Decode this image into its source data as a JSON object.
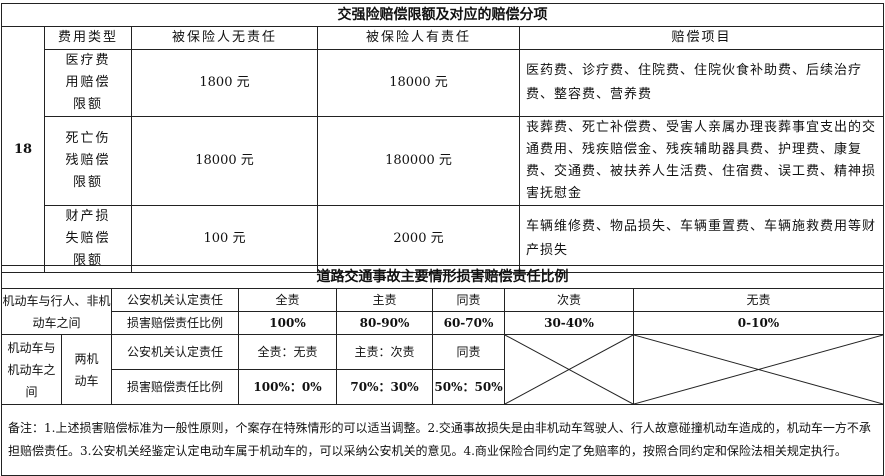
{
  "table1": {
    "title": "交强险赔偿限额及对应的赔偿分项",
    "row_number": "18",
    "headers": [
      "费用类型",
      "被保险人无责任",
      "被保险人有责任",
      "赔偿项目"
    ],
    "rows": [
      {
        "type": "医疗费用赔偿限额",
        "no_liability": "1800 元",
        "liability": "18000 元",
        "items": "医药费、诊疗费、住院费、住院伙食补助费、后续治疗费、整容费、营养费"
      },
      {
        "type": "死亡伤残赔偿限额",
        "no_liability": "18000 元",
        "liability": "180000 元",
        "items": "丧葬费、死亡补偿费、受害人亲属办理丧葬事宜支出的交通费用、残疾赔偿金、残疾辅助器具费、护理费、康复费、交通费、被扶养人生活费、住宿费、误工费、精神损害抚慰金"
      },
      {
        "type": "财产损失赔偿限额",
        "no_liability": "100 元",
        "liability": "2000 元",
        "items": "车辆维修费、物品损失、车辆重置费、车辆施救费用等财产损失"
      }
    ]
  },
  "table2": {
    "title": "道路交通事故主要情形损害赔偿责任比例",
    "group1": {
      "label": "机动车与行人、非机动车之间",
      "resp_label": "公安机关认定责任",
      "ratio_label": "损害赔偿责任比例",
      "resp": [
        "全责",
        "主责",
        "同责",
        "次责",
        "无责"
      ],
      "ratio": [
        "100%",
        "80-90%",
        "60-70%",
        "30-40%",
        "0-10%"
      ]
    },
    "group2": {
      "label": "机动车与机动车之间",
      "sub_label": "两机动车",
      "resp_label": "公安机关认定责任",
      "ratio_label": "损害赔偿责任比例",
      "resp": [
        "全责：无责",
        "主责：次责",
        "同责"
      ],
      "ratio": [
        "100%：0%",
        "70%：30%",
        "50%：50%"
      ]
    },
    "notes": "备注：1.上述损害赔偿标准为一般性原则，个案存在特殊情形的可以适当调整。2.交通事故损失是由非机动车驾驶人、行人故意碰撞机动车造成的，机动车一方不承担赔偿责任。3.公安机关经鉴定认定电动车属于机动车的，可以采纳公安机关的意见。4.商业保险合同约定了免赔率的，按照合同约定和保险法相关规定执行。"
  }
}
